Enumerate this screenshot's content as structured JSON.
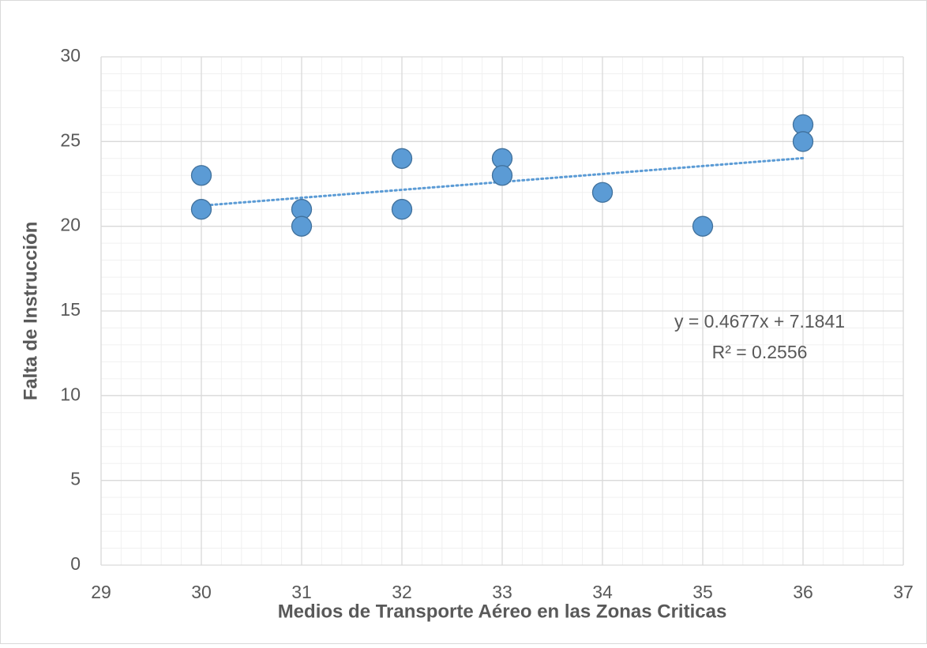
{
  "chart_data": {
    "type": "scatter",
    "xlabel": "Medios de Transporte Aéreo en las Zonas Criticas",
    "ylabel": "Falta de Instrucción",
    "series": [
      {
        "name": "Falta de Instrucción",
        "color": "#5b9bd5",
        "stroke": "#41719c",
        "x": [
          30,
          30,
          31,
          31,
          32,
          32,
          33,
          33,
          34,
          35,
          36,
          36
        ],
        "values": [
          23,
          21,
          21,
          20,
          24,
          21,
          24,
          23,
          22,
          20,
          26,
          25
        ]
      }
    ],
    "trendline": {
      "type": "linear",
      "slope": 0.4677,
      "intercept": 7.1841,
      "color": "#5b9bd5",
      "equation_label": "y = 0.4677x + 7.1841",
      "r2_label": "R² = 0.2556"
    },
    "xlim": [
      29,
      37
    ],
    "xticks": [
      29,
      30,
      31,
      32,
      33,
      34,
      35,
      36,
      37
    ],
    "ylim": [
      0,
      30
    ],
    "yticks": [
      0,
      5,
      10,
      15,
      20,
      25,
      30
    ],
    "grid": true,
    "minor_xstep": 0.2,
    "minor_ystep": 1
  }
}
